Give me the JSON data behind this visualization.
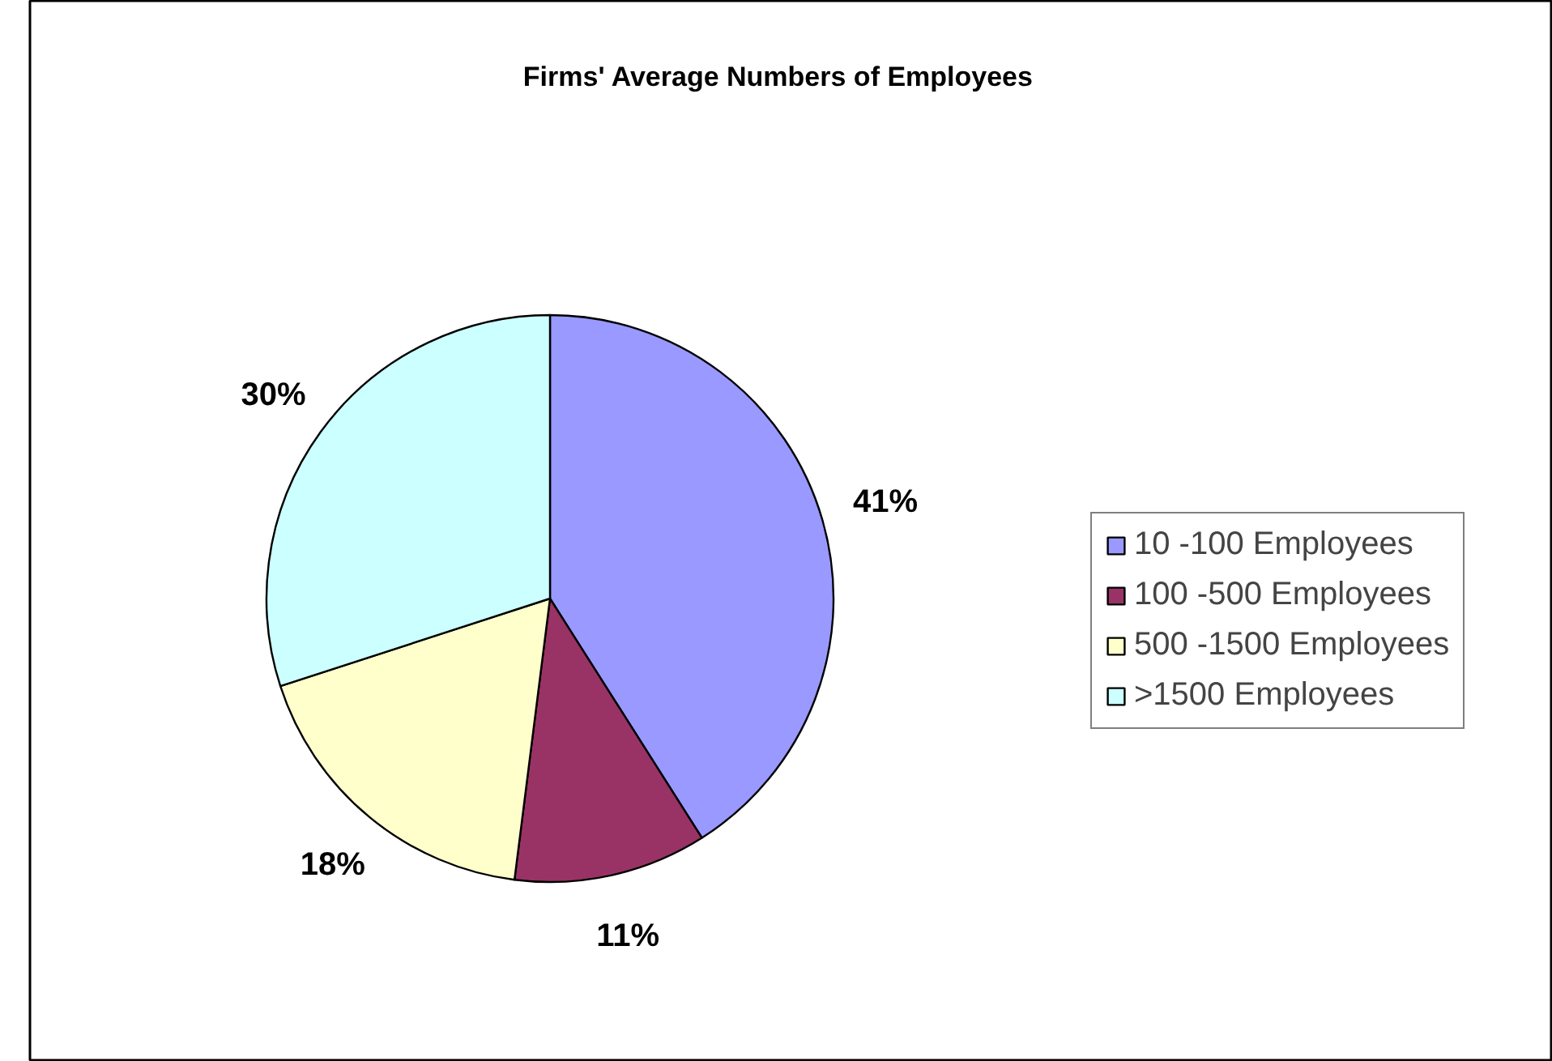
{
  "chart_data": {
    "type": "pie",
    "title": "Firms' Average Numbers of Employees",
    "categories": [
      "10 -100 Employees",
      "100 -500 Employees",
      "500 -1500 Employees",
      ">1500 Employees"
    ],
    "values": [
      41,
      11,
      18,
      30
    ],
    "colors": [
      "#9999ff",
      "#993366",
      "#ffffcc",
      "#ccffff"
    ],
    "value_labels": [
      "41%",
      "11%",
      "18%",
      "30%"
    ],
    "legend": "right"
  }
}
